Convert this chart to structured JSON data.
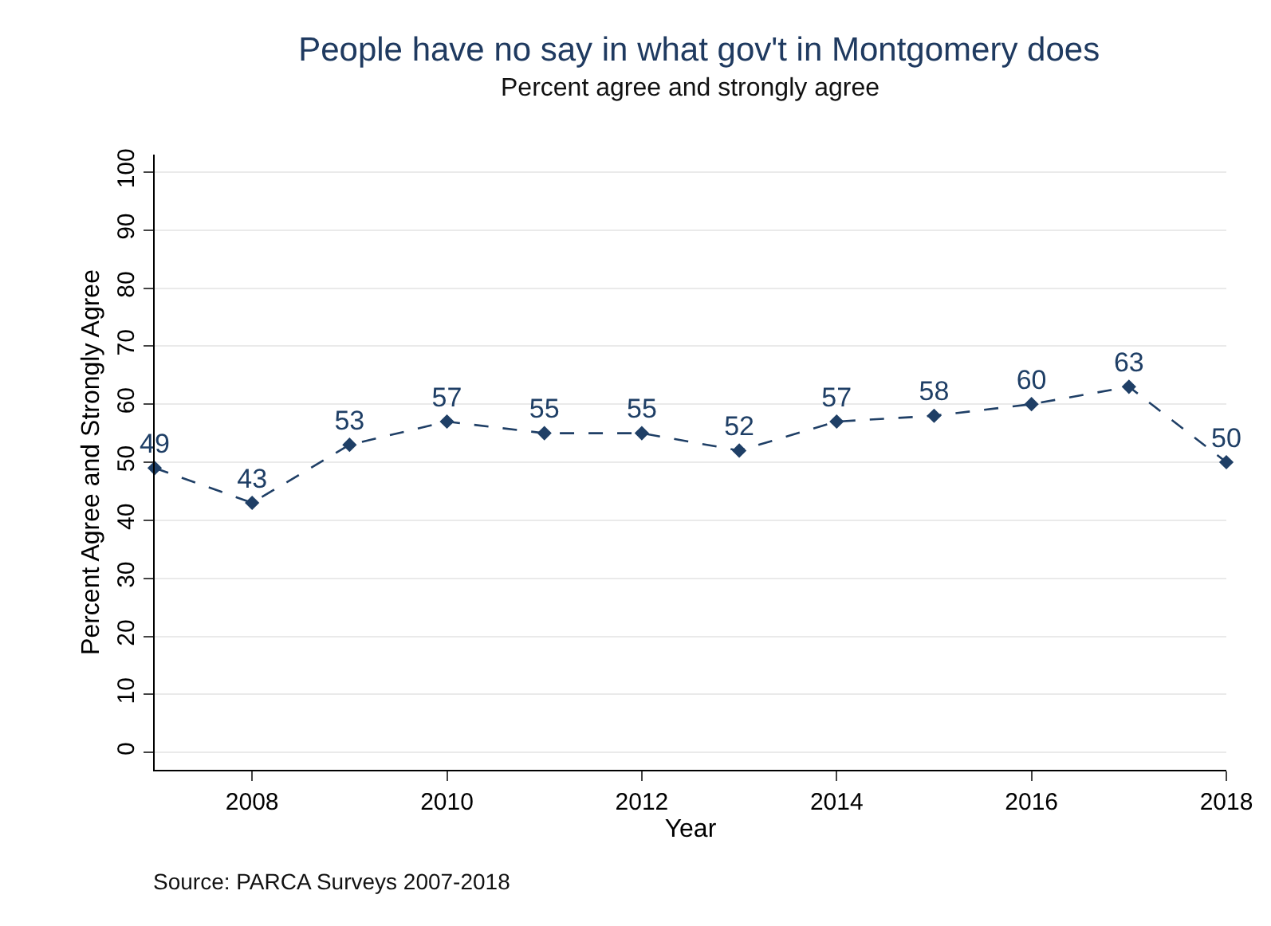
{
  "chart_data": {
    "type": "line",
    "title": "People have no say in what gov't in Montgomery does",
    "subtitle": "Percent agree and strongly agree",
    "xlabel": "Year",
    "ylabel": "Percent Agree and Strongly Agree",
    "x": [
      2007,
      2008,
      2009,
      2010,
      2011,
      2012,
      2013,
      2014,
      2015,
      2016,
      2017,
      2018
    ],
    "series": [
      {
        "color": "#1f3f66",
        "values": [
          49,
          43,
          53,
          57,
          55,
          55,
          52,
          57,
          58,
          60,
          63,
          50
        ]
      }
    ],
    "xlim": [
      2007,
      2018
    ],
    "xticks": [
      2008,
      2010,
      2012,
      2014,
      2016,
      2018
    ],
    "ylim": [
      -3,
      103
    ],
    "yticks": [
      0,
      10,
      20,
      30,
      40,
      50,
      60,
      70,
      80,
      90,
      100
    ],
    "grid": "y",
    "marker": "diamond",
    "line_style": "dashed",
    "data_labels": true,
    "annotations": [
      "Source: PARCA Surveys 2007-2018"
    ]
  }
}
